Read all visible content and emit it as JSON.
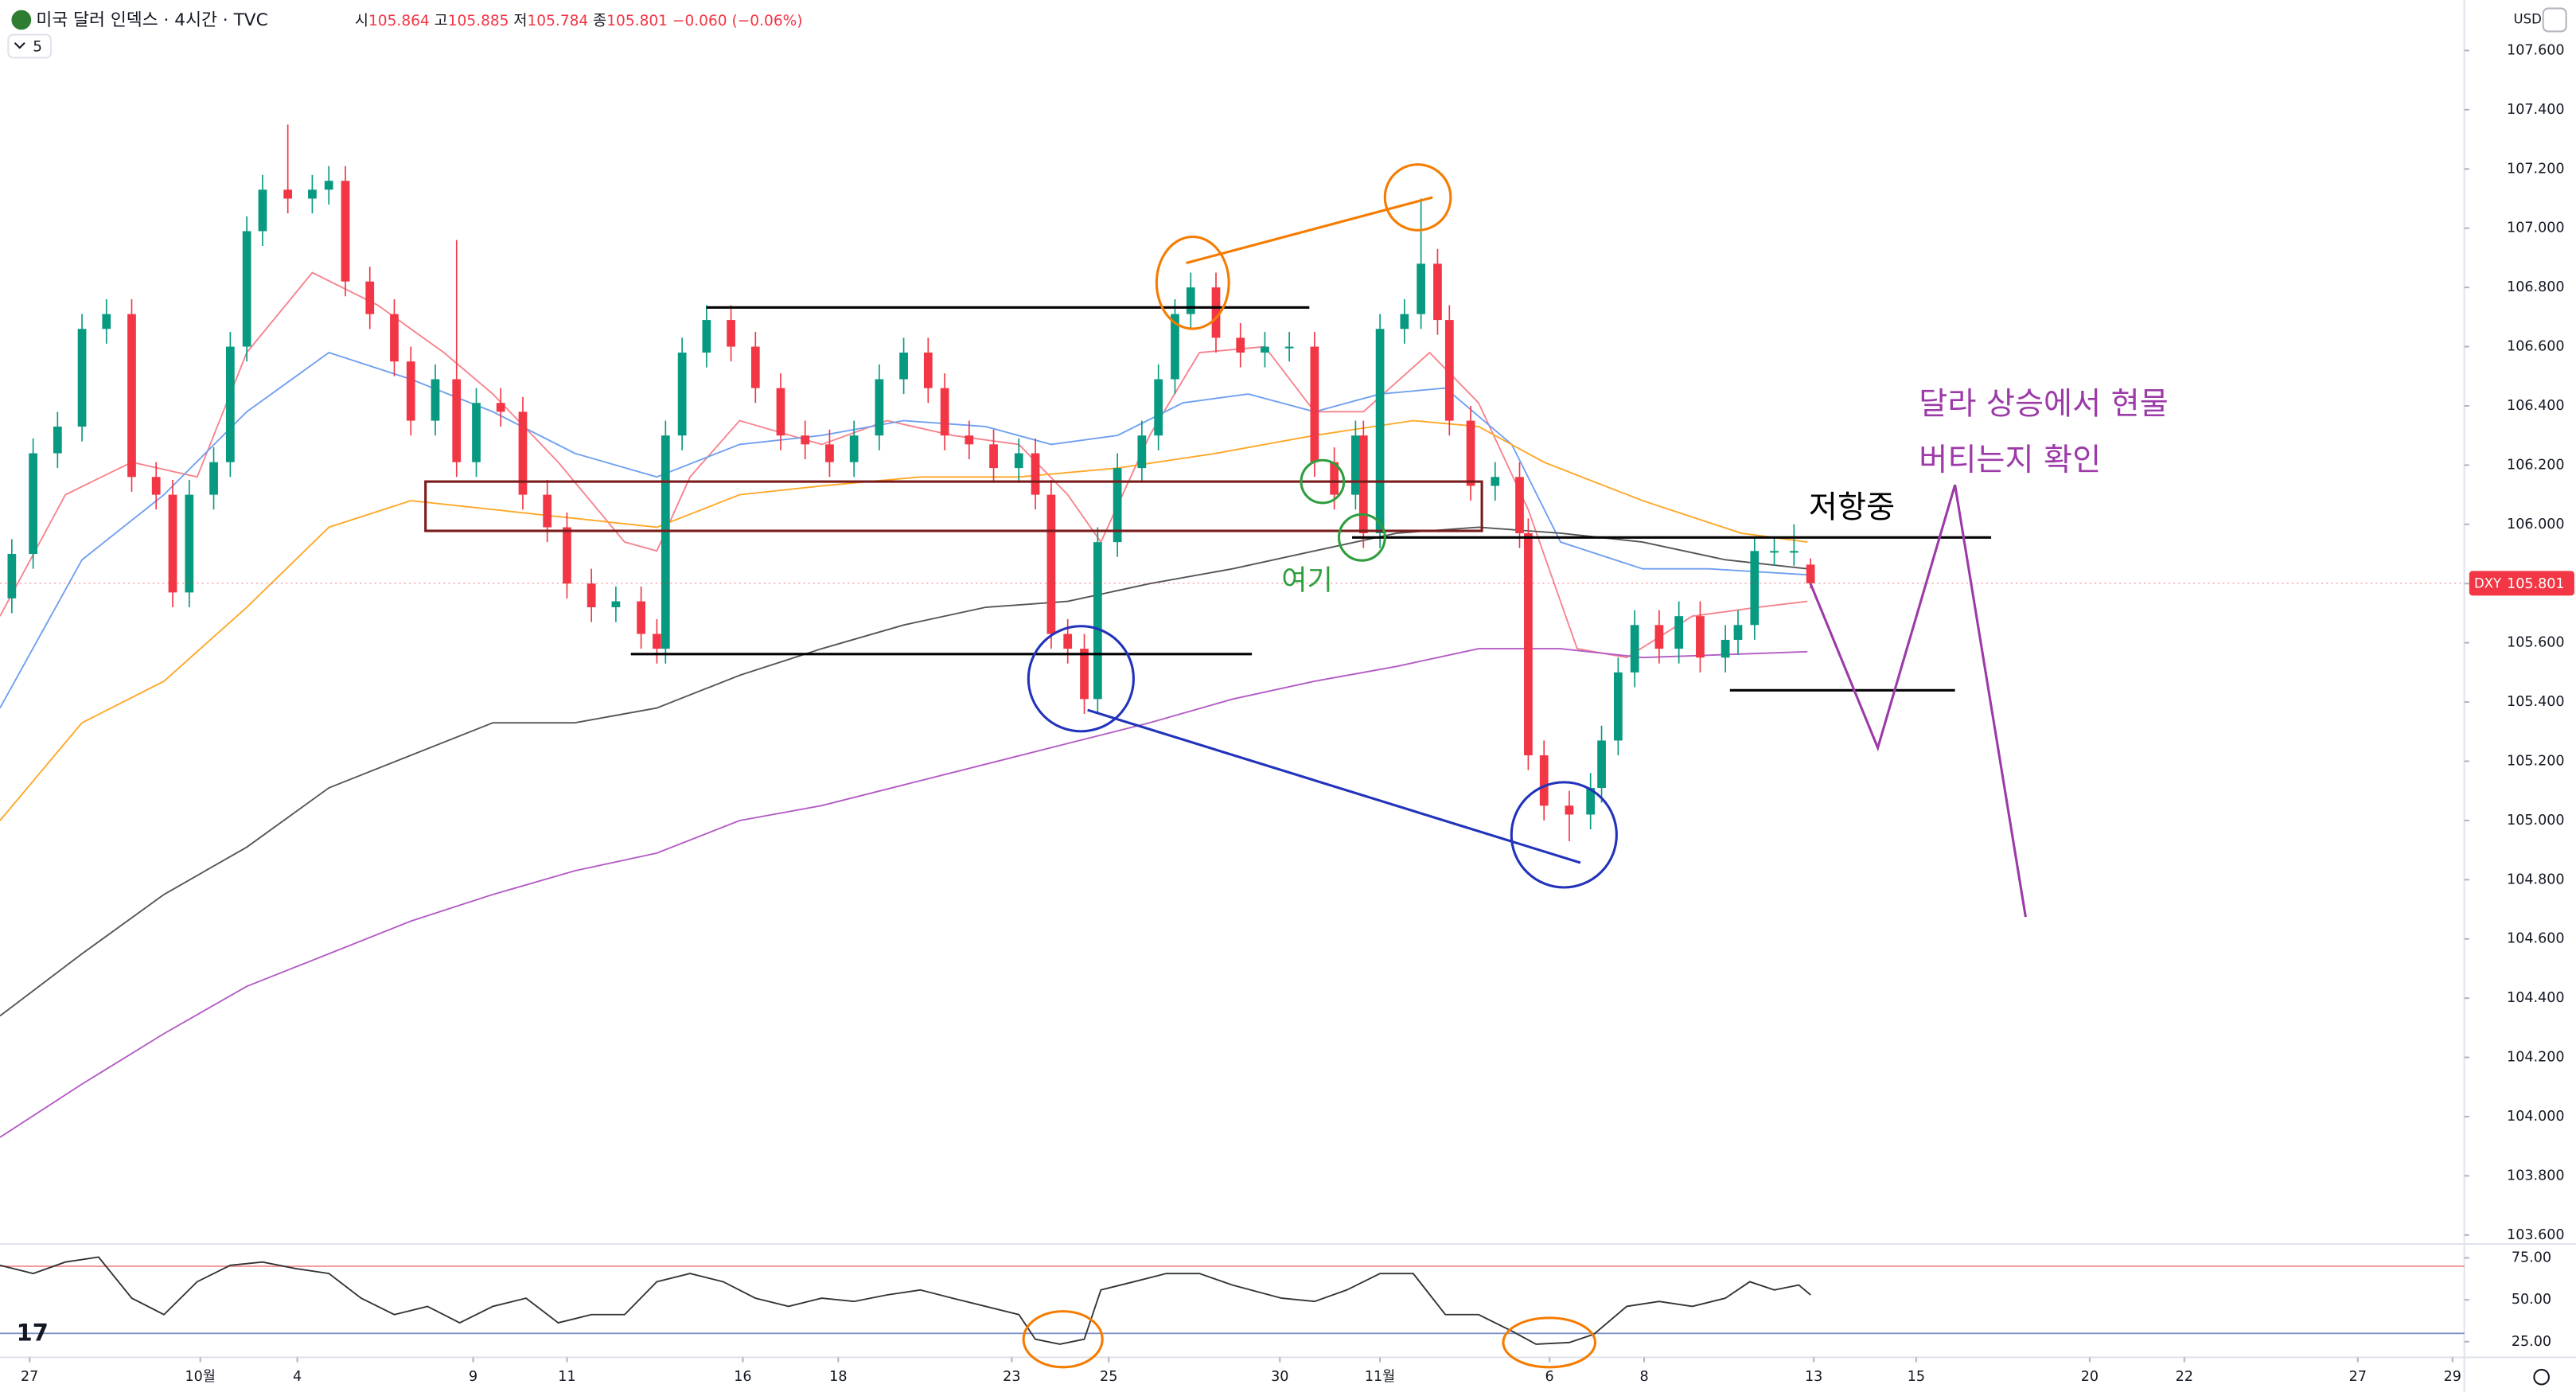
{
  "header": {
    "title": "미국 달러 인덱스 · 4시간 · TVC",
    "open_label": "시",
    "high_label": "고",
    "low_label": "저",
    "close_label": "종",
    "change": "−0.060 (−0.06%)",
    "indicator_count": "5",
    "currency": "USD",
    "symbol": "DXY"
  },
  "chart_data": [
    {
      "type": "candlestick",
      "x": [
        1.5,
        4.2,
        7.3,
        10.4,
        13.5,
        16.7,
        19.8,
        21.9,
        24.0,
        27.1,
        29.2,
        31.3,
        33.3,
        36.5,
        39.6,
        41.7,
        43.8,
        46.9,
        50.0,
        52.1,
        55.2,
        57.9,
        60.4,
        63.5,
        66.3,
        69.4,
        71.9,
        75.0,
        78.1,
        81.3,
        83.3,
        84.4,
        86.5,
        89.6,
        92.7,
        95.8,
        99.0,
        102.1,
        105.2,
        108.3,
        111.5,
        114.6,
        117.7,
        119.8,
        122.9,
        126.0,
        129.2,
        131.3,
        133.3,
        135.4,
        137.5,
        139.2,
        141.7,
        144.8,
        146.9,
        149.0,
        151.0,
        154.2,
        157.3,
        160.4,
        163.5,
        166.7,
        169.2,
        171.9,
        172.9,
        175.0,
        178.1,
        180.2,
        182.3,
        183.8,
        186.5,
        189.6,
        192.7,
        193.8,
        195.8,
        199.0,
        201.7,
        203.1,
        205.2,
        207.3,
        210.4,
        212.9,
        215.6,
        218.8,
        220.4,
        222.5,
        225.0,
        227.5,
        229.6
      ],
      "open": [
        105.75,
        105.9,
        106.24,
        106.33,
        106.66,
        106.71,
        106.16,
        106.1,
        105.77,
        106.1,
        106.21,
        106.6,
        106.99,
        107.13,
        107.1,
        107.13,
        107.16,
        106.82,
        106.71,
        106.55,
        106.35,
        106.49,
        106.21,
        106.41,
        106.38,
        106.1,
        105.99,
        105.8,
        105.72,
        105.74,
        105.63,
        105.58,
        106.3,
        106.58,
        106.69,
        106.6,
        106.46,
        106.3,
        106.27,
        106.21,
        106.3,
        106.49,
        106.58,
        106.46,
        106.3,
        106.27,
        106.19,
        106.24,
        106.1,
        105.63,
        105.58,
        105.41,
        105.94,
        106.19,
        106.3,
        106.49,
        106.71,
        106.8,
        106.63,
        106.58,
        106.6,
        106.6,
        106.21,
        106.1,
        106.3,
        105.97,
        106.66,
        106.71,
        106.88,
        106.69,
        106.35,
        106.13,
        106.16,
        105.97,
        105.22,
        105.05,
        105.02,
        105.11,
        105.27,
        105.5,
        105.66,
        105.58,
        105.69,
        105.55,
        105.61,
        105.66,
        105.91,
        105.91,
        105.864
      ],
      "high": [
        105.95,
        106.29,
        106.38,
        106.71,
        106.76,
        106.76,
        106.21,
        106.15,
        106.15,
        106.26,
        106.65,
        107.04,
        107.18,
        107.35,
        107.18,
        107.21,
        107.21,
        106.87,
        106.76,
        106.6,
        106.54,
        106.96,
        106.46,
        106.46,
        106.43,
        106.15,
        106.04,
        105.85,
        105.79,
        105.79,
        105.68,
        106.35,
        106.63,
        106.74,
        106.74,
        106.65,
        106.51,
        106.35,
        106.32,
        106.35,
        106.54,
        106.63,
        106.63,
        106.51,
        106.35,
        106.32,
        106.29,
        106.29,
        106.15,
        105.68,
        105.63,
        105.99,
        106.24,
        106.35,
        106.54,
        106.76,
        106.85,
        106.85,
        106.68,
        106.65,
        106.65,
        106.65,
        106.26,
        106.35,
        106.35,
        106.71,
        106.76,
        107.1,
        106.93,
        106.74,
        106.4,
        106.21,
        106.21,
        106.02,
        105.27,
        105.1,
        105.16,
        105.32,
        105.55,
        105.71,
        105.71,
        105.74,
        105.74,
        105.66,
        105.71,
        105.96,
        105.96,
        106.0,
        105.885
      ],
      "low": [
        105.7,
        105.85,
        106.19,
        106.28,
        106.61,
        106.11,
        106.05,
        105.72,
        105.72,
        106.05,
        106.16,
        106.55,
        106.94,
        107.05,
        107.05,
        107.08,
        106.77,
        106.66,
        106.5,
        106.3,
        106.3,
        106.16,
        106.16,
        106.33,
        106.05,
        105.94,
        105.75,
        105.67,
        105.67,
        105.58,
        105.53,
        105.53,
        106.25,
        106.53,
        106.55,
        106.41,
        106.25,
        106.22,
        106.16,
        106.16,
        106.25,
        106.44,
        106.41,
        106.25,
        106.22,
        106.14,
        106.14,
        106.05,
        105.58,
        105.53,
        105.36,
        105.36,
        105.89,
        106.14,
        106.25,
        106.44,
        106.66,
        106.58,
        106.53,
        106.53,
        106.55,
        106.16,
        106.05,
        106.05,
        105.92,
        105.92,
        106.61,
        106.66,
        106.64,
        106.3,
        106.08,
        106.08,
        105.92,
        105.17,
        105.0,
        104.93,
        104.97,
        105.06,
        105.22,
        105.45,
        105.53,
        105.53,
        105.5,
        105.5,
        105.56,
        105.61,
        105.86,
        105.86,
        105.784
      ],
      "close": [
        105.9,
        106.24,
        106.33,
        106.66,
        106.71,
        106.16,
        106.1,
        105.77,
        106.1,
        106.21,
        106.6,
        106.99,
        107.13,
        107.1,
        107.13,
        107.16,
        106.82,
        106.71,
        106.55,
        106.35,
        106.49,
        106.21,
        106.41,
        106.38,
        106.1,
        105.99,
        105.8,
        105.72,
        105.74,
        105.63,
        105.58,
        106.3,
        106.58,
        106.69,
        106.6,
        106.46,
        106.3,
        106.27,
        106.21,
        106.3,
        106.49,
        106.58,
        106.46,
        106.3,
        106.27,
        106.19,
        106.24,
        106.1,
        105.63,
        105.58,
        105.41,
        105.94,
        106.19,
        106.3,
        106.49,
        106.71,
        106.8,
        106.63,
        106.58,
        106.6,
        106.6,
        106.21,
        106.1,
        106.3,
        105.97,
        106.66,
        106.71,
        106.88,
        106.69,
        106.35,
        106.13,
        106.16,
        105.97,
        105.22,
        105.05,
        105.02,
        105.11,
        105.27,
        105.5,
        105.66,
        105.58,
        105.69,
        105.55,
        105.61,
        105.66,
        105.91,
        105.91,
        105.91,
        105.801
      ],
      "up_color": "#089981",
      "down_color": "#f23645",
      "overlays": [
        {
          "color": "#f7828c",
          "x": [
            0,
            8.3,
            16.7,
            25,
            31.3,
            39.6,
            47.9,
            56.3,
            62.5,
            70.8,
            79.2,
            83.3,
            87.5,
            93.8,
            104.2,
            112.5,
            120.8,
            129.2,
            135.4,
            139.6,
            145.8,
            152.1,
            160.4,
            166.7,
            172.9,
            181.3,
            187.5,
            193.8,
            200,
            206.3,
            214.6,
            222.9,
            229.2
          ],
          "values": [
            105.69,
            106.1,
            106.21,
            106.16,
            106.58,
            106.85,
            106.74,
            106.58,
            106.44,
            106.21,
            105.94,
            105.91,
            106.16,
            106.35,
            106.27,
            106.35,
            106.3,
            106.27,
            106.1,
            105.94,
            106.3,
            106.58,
            106.6,
            106.38,
            106.38,
            106.58,
            106.41,
            106.05,
            105.58,
            105.55,
            105.69,
            105.72,
            105.74
          ]
        },
        {
          "color": "#6f9ff0",
          "x": [
            0,
            10.4,
            20.8,
            31.3,
            41.7,
            52.1,
            62.5,
            72.9,
            83.3,
            93.8,
            104.2,
            114.6,
            125,
            133.3,
            141.7,
            150,
            158.3,
            166.7,
            175,
            183.3,
            191.7,
            197.9,
            208.3,
            216.7,
            229.2
          ],
          "values": [
            105.38,
            105.88,
            106.1,
            106.38,
            106.58,
            106.49,
            106.38,
            106.24,
            106.16,
            106.27,
            106.3,
            106.35,
            106.33,
            106.27,
            106.3,
            106.41,
            106.44,
            106.38,
            106.44,
            106.46,
            106.27,
            105.94,
            105.85,
            105.85,
            105.83
          ]
        },
        {
          "color": "#ffa726",
          "x": [
            0,
            10.4,
            20.8,
            31.3,
            41.7,
            52.1,
            62.5,
            72.9,
            83.3,
            93.8,
            104.2,
            116.7,
            129.2,
            141.7,
            154.2,
            166.7,
            179.2,
            187.5,
            195.8,
            208.3,
            220.8,
            229.2
          ],
          "values": [
            105.0,
            105.33,
            105.47,
            105.72,
            105.99,
            106.08,
            106.05,
            106.02,
            105.99,
            106.1,
            106.13,
            106.16,
            106.16,
            106.19,
            106.24,
            106.3,
            106.35,
            106.33,
            106.21,
            106.08,
            105.97,
            105.94
          ]
        },
        {
          "color": "#555555",
          "x": [
            0,
            10.4,
            20.8,
            31.3,
            41.7,
            52.1,
            62.5,
            72.9,
            83.3,
            93.8,
            104.2,
            114.6,
            125,
            135.4,
            145.8,
            156.3,
            166.7,
            177.1,
            187.5,
            197.9,
            208.3,
            218.8,
            229.2
          ],
          "values": [
            104.34,
            104.55,
            104.75,
            104.91,
            105.11,
            105.22,
            105.33,
            105.33,
            105.38,
            105.49,
            105.58,
            105.66,
            105.72,
            105.74,
            105.8,
            105.85,
            105.91,
            105.97,
            105.99,
            105.97,
            105.94,
            105.88,
            105.85
          ]
        },
        {
          "color": "#b35bc4",
          "x": [
            0,
            10.4,
            20.8,
            31.3,
            41.7,
            52.1,
            62.5,
            72.9,
            83.3,
            93.8,
            104.2,
            114.6,
            125,
            135.4,
            145.8,
            156.3,
            166.7,
            177.1,
            187.5,
            197.9,
            208.3,
            218.8,
            229.2
          ],
          "values": [
            103.93,
            104.11,
            104.28,
            104.44,
            104.55,
            104.66,
            104.75,
            104.83,
            104.89,
            105.0,
            105.05,
            105.12,
            105.19,
            105.26,
            105.33,
            105.41,
            105.47,
            105.52,
            105.58,
            105.58,
            105.55,
            105.56,
            105.57
          ]
        }
      ],
      "xlim": [
        0,
        312.5
      ],
      "xticks": [
        {
          "value": 3.75,
          "label": "27"
        },
        {
          "value": 25.4,
          "label": "10월"
        },
        {
          "value": 37.7,
          "label": "4"
        },
        {
          "value": 60,
          "label": "9"
        },
        {
          "value": 71.9,
          "label": "11"
        },
        {
          "value": 94.2,
          "label": "16"
        },
        {
          "value": 106.3,
          "label": "18"
        },
        {
          "value": 128.3,
          "label": "23"
        },
        {
          "value": 140.6,
          "label": "25"
        },
        {
          "value": 162.3,
          "label": "30"
        },
        {
          "value": 175,
          "label": "11월"
        },
        {
          "value": 196.5,
          "label": "6"
        },
        {
          "value": 208.5,
          "label": "8"
        },
        {
          "value": 230,
          "label": "13"
        },
        {
          "value": 243,
          "label": "15"
        },
        {
          "value": 265,
          "label": "20"
        },
        {
          "value": 277,
          "label": "22"
        },
        {
          "value": 299,
          "label": "27"
        },
        {
          "value": 311,
          "label": "29"
        }
      ],
      "ylim": [
        103.57,
        107.77
      ],
      "yticks": [
        {
          "value": 103.6,
          "label": "103.600"
        },
        {
          "value": 103.8,
          "label": "103.800"
        },
        {
          "value": 104.0,
          "label": "104.000"
        },
        {
          "value": 104.2,
          "label": "104.200"
        },
        {
          "value": 104.4,
          "label": "104.400"
        },
        {
          "value": 104.6,
          "label": "104.600"
        },
        {
          "value": 104.8,
          "label": "104.800"
        },
        {
          "value": 105.0,
          "label": "105.000"
        },
        {
          "value": 105.2,
          "label": "105.200"
        },
        {
          "value": 105.4,
          "label": "105.400"
        },
        {
          "value": 105.6,
          "label": "105.600"
        },
        {
          "value": 105.8,
          "label": "105.800"
        },
        {
          "value": 106.0,
          "label": "106.000"
        },
        {
          "value": 106.2,
          "label": "106.200"
        },
        {
          "value": 106.4,
          "label": "106.400"
        },
        {
          "value": 106.6,
          "label": "106.600"
        },
        {
          "value": 106.8,
          "label": "106.800"
        },
        {
          "value": 107.0,
          "label": "107.000"
        },
        {
          "value": 107.2,
          "label": "107.200"
        },
        {
          "value": 107.4,
          "label": "107.400"
        },
        {
          "value": 107.6,
          "label": "107.600"
        }
      ],
      "grid": false,
      "annotations": [
        "달라 상승에서 현물",
        "버티는지 확인",
        "저항중",
        "여기"
      ]
    },
    {
      "type": "line",
      "x": [
        0,
        4.2,
        8.3,
        12.5,
        16.7,
        20.8,
        25,
        29.2,
        33.3,
        37.5,
        41.7,
        45.8,
        50,
        54.2,
        58.3,
        62.5,
        66.7,
        70.8,
        75,
        79.2,
        83.3,
        87.5,
        91.7,
        95.8,
        100,
        104.2,
        108.3,
        112.5,
        116.7,
        120.8,
        125,
        129.2,
        131.3,
        134.4,
        137.5,
        139.6,
        143.8,
        147.9,
        152.1,
        156.3,
        162.5,
        166.7,
        170.8,
        175,
        179.2,
        183.3,
        187.5,
        191.7,
        194.8,
        199,
        202.1,
        206.3,
        210.4,
        214.6,
        218.8,
        221.9,
        225,
        228.1,
        229.6
      ],
      "values": [
        70.6,
        65.7,
        72.5,
        75.5,
        51,
        41.2,
        60.8,
        70.6,
        72.5,
        68.6,
        65.7,
        51,
        41.2,
        46.1,
        36.3,
        46.1,
        51,
        36.3,
        41.2,
        41.2,
        60.8,
        65.7,
        60.8,
        51,
        46.1,
        51,
        49,
        52.9,
        55.9,
        51,
        46.1,
        41.2,
        26.5,
        23.5,
        26.5,
        55.9,
        60.8,
        65.7,
        65.7,
        58.8,
        51,
        49,
        55.9,
        65.7,
        65.7,
        41.2,
        41.2,
        31.4,
        23.5,
        24.5,
        29.4,
        46.1,
        49,
        46.1,
        51,
        60.8,
        55.9,
        58.8,
        52.9
      ],
      "color": "#333333",
      "bands": [
        70,
        30
      ],
      "band_colors": [
        "#f28b8b",
        "#7f93c9"
      ],
      "xlim": [
        0,
        312.5
      ],
      "ylim": [
        19.6,
        83.3
      ],
      "yticks": [
        {
          "value": 75,
          "label": "75.00"
        },
        {
          "value": 50,
          "label": "50.00"
        },
        {
          "value": 25,
          "label": "25.00"
        }
      ]
    }
  ]
}
